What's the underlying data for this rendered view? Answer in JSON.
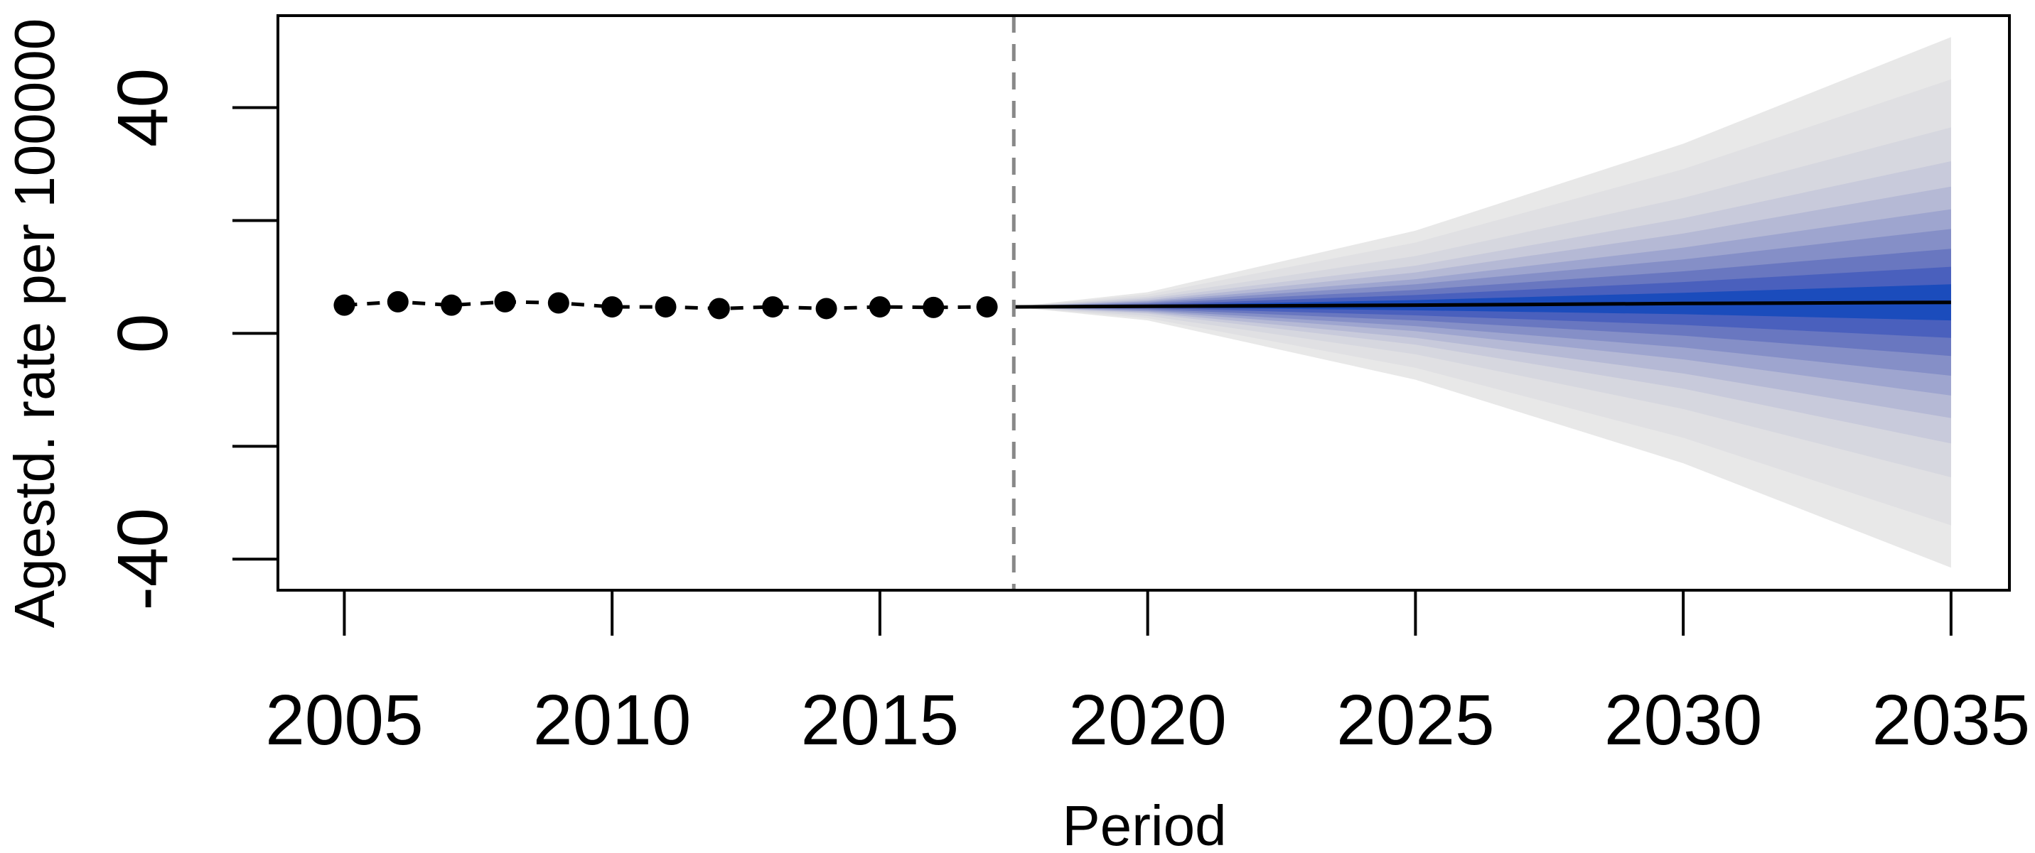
{
  "chart_data": {
    "type": "fan",
    "xlabel": "Period",
    "ylabel": "Agestd. rate per 100000",
    "xlim": [
      2003.76,
      2036.09
    ],
    "ylim": [
      -45.5,
      56.3
    ],
    "xticks": [
      2005,
      2010,
      2015,
      2020,
      2025,
      2030,
      2035
    ],
    "yticks": [
      -40,
      {
        "value": -20,
        "label": null
      },
      0,
      {
        "value": 20,
        "label": null
      },
      40
    ],
    "observed": {
      "color": "#000000",
      "x": [
        2005,
        2006,
        2007,
        2008,
        2009,
        2010,
        2011,
        2012,
        2013,
        2014,
        2015,
        2016,
        2017
      ],
      "values": [
        5.0,
        5.6,
        5.0,
        5.6,
        5.4,
        4.7,
        4.7,
        4.4,
        4.7,
        4.4,
        4.7,
        4.6,
        4.7
      ]
    },
    "forecast_start": 2017.5,
    "forecast": {
      "color": "#000000",
      "x": [
        2017.5,
        2020,
        2025,
        2030,
        2035
      ],
      "values": [
        4.7,
        4.8,
        5.0,
        5.3,
        5.5
      ],
      "fan": [
        {
          "color": "#e8e8e8",
          "upper": [
            4.7,
            7.3,
            18.2,
            33.6,
            52.5
          ],
          "lower": [
            4.7,
            2.3,
            -8.2,
            -23.0,
            -41.5
          ]
        },
        {
          "color": "#e0e0e3",
          "upper": [
            4.7,
            6.9,
            16.1,
            29.1,
            45.0
          ],
          "lower": [
            4.7,
            2.7,
            -6.1,
            -18.5,
            -34.0
          ]
        },
        {
          "color": "#d6d7df",
          "upper": [
            4.7,
            6.5,
            13.7,
            24.0,
            36.5
          ],
          "lower": [
            4.7,
            3.1,
            -3.7,
            -13.4,
            -25.5
          ]
        },
        {
          "color": "#c8cadb",
          "upper": [
            4.7,
            6.2,
            12.0,
            20.4,
            30.5
          ],
          "lower": [
            4.7,
            3.5,
            -2.0,
            -9.8,
            -19.5
          ]
        },
        {
          "color": "#b5b9d5",
          "upper": [
            4.7,
            5.9,
            10.8,
            17.7,
            26.0
          ],
          "lower": [
            4.7,
            3.7,
            -0.8,
            -7.1,
            -15.0
          ]
        },
        {
          "color": "#9ea5cf",
          "upper": [
            4.7,
            5.7,
            9.6,
            15.2,
            22.0
          ],
          "lower": [
            4.7,
            3.9,
            0.4,
            -4.6,
            -11.0
          ]
        },
        {
          "color": "#858fc7",
          "upper": [
            4.7,
            5.5,
            8.7,
            13.1,
            18.5
          ],
          "lower": [
            4.7,
            4.1,
            1.3,
            -2.5,
            -7.5
          ]
        },
        {
          "color": "#6977c0",
          "upper": [
            4.7,
            5.3,
            7.7,
            11.0,
            15.0
          ],
          "lower": [
            4.7,
            4.3,
            2.3,
            -0.4,
            -4.0
          ]
        },
        {
          "color": "#4a60bd",
          "upper": [
            4.7,
            5.1,
            6.8,
            9.1,
            11.8
          ],
          "lower": [
            4.7,
            4.5,
            3.2,
            1.5,
            -0.8
          ]
        },
        {
          "color": "#1b4cbc",
          "upper": [
            4.7,
            5.0,
            5.9,
            7.2,
            8.7
          ],
          "lower": [
            4.7,
            4.6,
            4.1,
            3.4,
            2.3
          ]
        }
      ]
    }
  }
}
